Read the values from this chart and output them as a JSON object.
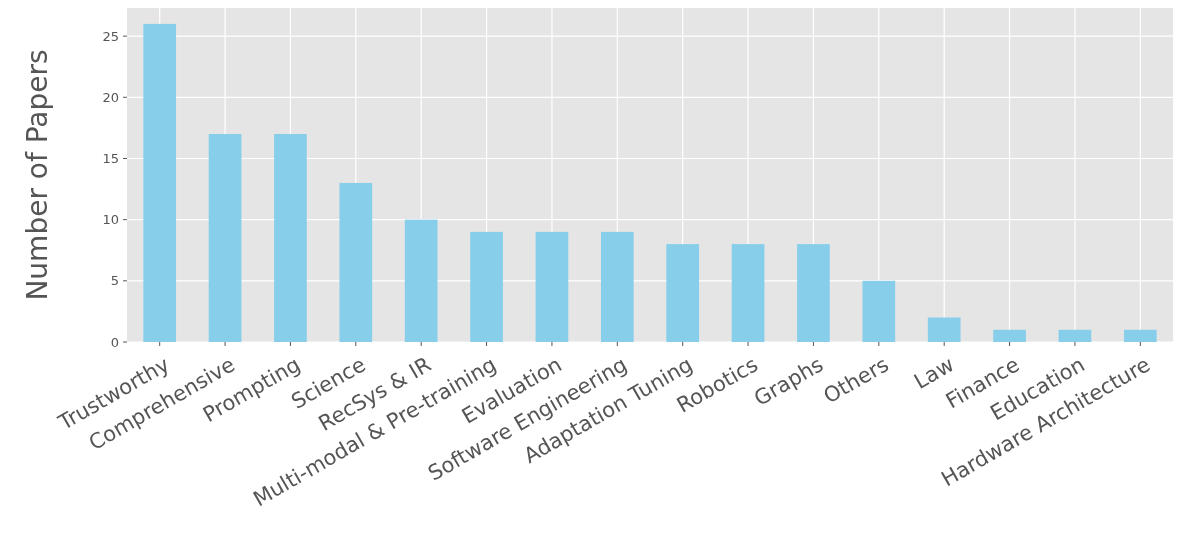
{
  "chart_data": {
    "type": "bar",
    "ylabel": "Number of Papers",
    "categories": [
      "Trustworthy",
      "Comprehensive",
      "Prompting",
      "Science",
      "RecSys & IR",
      "Multi-modal & Pre-training",
      "Evaluation",
      "Software Engineering",
      "Adaptation Tuning",
      "Robotics",
      "Graphs",
      "Others",
      "Law",
      "Finance",
      "Education",
      "Hardware Architecture"
    ],
    "values": [
      26,
      17,
      17,
      13,
      10,
      9,
      9,
      9,
      8,
      8,
      8,
      5,
      2,
      1,
      1,
      1
    ],
    "color": "#87ceeb",
    "ylim": [
      0,
      27.3
    ],
    "yticks": [
      0,
      5,
      10,
      15,
      20,
      25
    ],
    "grid": true
  }
}
